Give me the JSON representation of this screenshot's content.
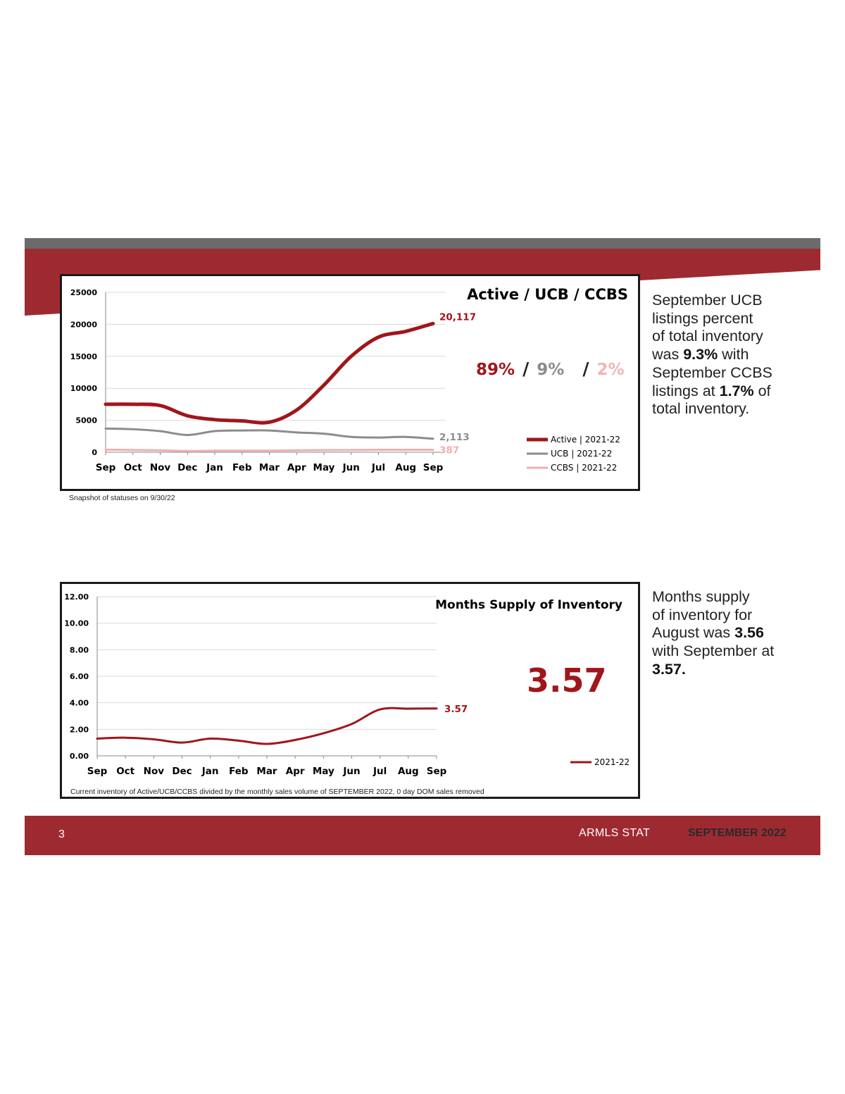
{
  "chart_data": [
    {
      "type": "line",
      "title": "Active / UCB / CCBS",
      "categories": [
        "Sep",
        "Oct",
        "Nov",
        "Dec",
        "Jan",
        "Feb",
        "Mar",
        "Apr",
        "May",
        "Jun",
        "Jul",
        "Aug",
        "Sep"
      ],
      "ylim": [
        0,
        25000
      ],
      "yticks": [
        "25000",
        "20000",
        "15000",
        "10000",
        "5000",
        "0"
      ],
      "series": [
        {
          "name": "Active | 2021-22",
          "color": "#a0161b",
          "values": [
            7500,
            7500,
            7300,
            5700,
            5100,
            4900,
            4700,
            6600,
            10500,
            15000,
            18000,
            18900,
            20117
          ],
          "end_label": "20,117"
        },
        {
          "name": "UCB | 2021-22",
          "color": "#8c8c8c",
          "values": [
            3700,
            3600,
            3300,
            2700,
            3300,
            3400,
            3400,
            3100,
            2900,
            2400,
            2300,
            2400,
            2113
          ],
          "end_label": "2,113"
        },
        {
          "name": "CCBS | 2021-22",
          "color": "#f0b0b0",
          "values": [
            400,
            350,
            300,
            200,
            250,
            250,
            250,
            300,
            330,
            350,
            380,
            380,
            387
          ],
          "end_label": "387"
        }
      ],
      "grid": true,
      "legend": "bottom-right",
      "percentages": {
        "active": "89%",
        "ucb": "9%",
        "ccbs": "2%",
        "separator": "/"
      },
      "note": "Snapshot of statuses on 9/30/22"
    },
    {
      "type": "line",
      "title": "Months Supply of Inventory",
      "categories": [
        "Sep",
        "Oct",
        "Nov",
        "Dec",
        "Jan",
        "Feb",
        "Mar",
        "Apr",
        "May",
        "Jun",
        "Jul",
        "Aug",
        "Sep"
      ],
      "ylim": [
        0,
        12
      ],
      "yticks": [
        "12.00",
        "10.00",
        "8.00",
        "6.00",
        "4.00",
        "2.00",
        "0.00"
      ],
      "series": [
        {
          "name": "2021-22",
          "color": "#a0161b",
          "values": [
            1.3,
            1.37,
            1.25,
            1.0,
            1.3,
            1.15,
            0.9,
            1.2,
            1.7,
            2.4,
            3.5,
            3.56,
            3.57
          ],
          "end_label": "3.57"
        }
      ],
      "grid": true,
      "legend": "bottom-right",
      "highlight_value": "3.57",
      "note": "Current inventory of Active/UCB/CCBS divided by the monthly sales volume of SEPTEMBER 2022, 0 day DOM sales removed"
    }
  ],
  "sidebar1": {
    "line1": "September UCB",
    "line2": "listings percent",
    "line3": "of total inventory",
    "line4_pre": "was ",
    "line4_bold": "9.3%",
    "line4_post": " with",
    "line5": "September CCBS",
    "line6_pre": "listings at ",
    "line6_bold": "1.7%",
    "line6_post": " of",
    "line7": "total inventory."
  },
  "sidebar2": {
    "line1": "Months supply",
    "line2": "of inventory for",
    "line3_pre": "August was ",
    "line3_bold": "3.56",
    "line4": "with September at",
    "line5_bold": "3.57",
    "line5_post": "."
  },
  "footer": {
    "page_number": "3",
    "org": "ARMLS STAT",
    "period": "SEPTEMBER 2022"
  }
}
